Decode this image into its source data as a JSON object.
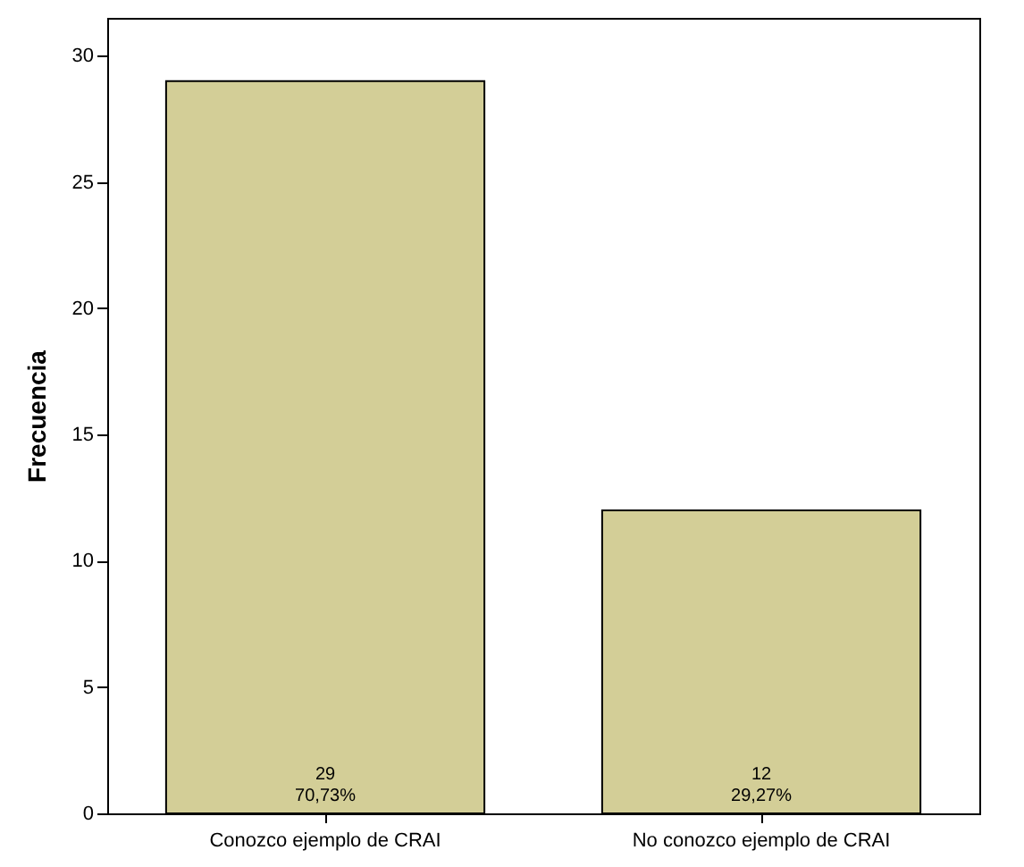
{
  "chart_data": {
    "type": "bar",
    "ylabel": "Frecuencia",
    "categories": [
      "Conozco ejemplo de CRAI",
      "No conozco ejemplo de CRAI"
    ],
    "values": [
      29,
      12
    ],
    "value_labels": [
      "29\n70,73%",
      "12\n29,27%"
    ],
    "color": "#d3ce97",
    "ylim": [
      0,
      31.5
    ],
    "yticks": [
      0,
      5,
      10,
      15,
      20,
      25,
      30
    ],
    "grid": false
  }
}
